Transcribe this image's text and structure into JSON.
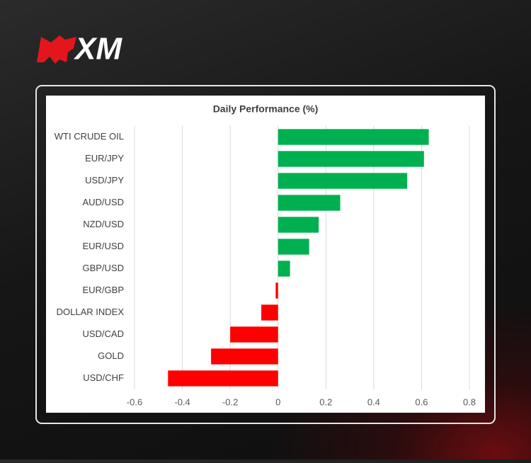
{
  "logo": "XM",
  "chart_data": {
    "type": "bar",
    "horizontal": true,
    "title": "Daily Performance (%)",
    "categories": [
      "WTI CRUDE OIL",
      "EUR/JPY",
      "USD/JPY",
      "AUD/USD",
      "NZD/USD",
      "EUR/USD",
      "GBP/USD",
      "EUR/GBP",
      "DOLLAR INDEX",
      "USD/CAD",
      "GOLD",
      "USD/CHF"
    ],
    "values": [
      0.63,
      0.61,
      0.54,
      0.26,
      0.17,
      0.13,
      0.05,
      -0.01,
      -0.07,
      -0.2,
      -0.28,
      -0.46
    ],
    "positive_color": "#00b050",
    "negative_color": "#ff0000",
    "xlim": [
      -0.6,
      0.8
    ],
    "xticks": [
      -0.6,
      -0.4,
      -0.2,
      0,
      0.2,
      0.4,
      0.6,
      0.8
    ],
    "grid": true
  }
}
